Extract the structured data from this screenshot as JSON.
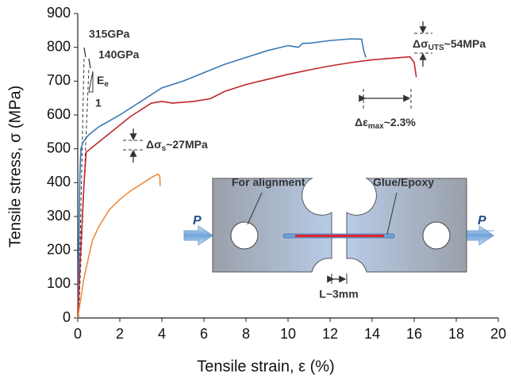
{
  "chart_data": {
    "type": "line",
    "x_label": "Tensile strain, ε (%)",
    "y_label": "Tensile stress, σ (MPa)",
    "xlim": [
      0,
      20
    ],
    "xticks": [
      0,
      2,
      4,
      6,
      8,
      10,
      12,
      14,
      16,
      18,
      20
    ],
    "ylim": [
      0,
      900
    ],
    "yticks": [
      0,
      100,
      200,
      300,
      400,
      500,
      600,
      700,
      800,
      900
    ],
    "series": [
      {
        "color": "#3a78b5",
        "x": [
          0,
          0.05,
          0.1,
          0.15,
          0.25,
          0.5,
          1,
          2,
          3,
          4,
          5,
          6,
          7,
          8,
          9,
          10,
          10.5,
          10.7,
          11,
          12,
          13,
          13.5,
          13.6,
          13.7
        ],
        "values": [
          0,
          200,
          420,
          500,
          520,
          540,
          565,
          600,
          640,
          680,
          700,
          725,
          750,
          770,
          790,
          805,
          800,
          812,
          812,
          820,
          825,
          824,
          790,
          770
        ]
      },
      {
        "color": "#c0272d",
        "x": [
          0,
          0.1,
          0.3,
          0.4,
          0.8,
          1.5,
          2.5,
          3.5,
          4,
          4.5,
          5.5,
          6.3,
          7,
          8,
          9,
          10,
          11,
          12,
          13,
          14,
          15,
          15.8,
          16,
          16.1
        ],
        "values": [
          0,
          150,
          400,
          490,
          510,
          545,
          595,
          635,
          640,
          635,
          640,
          648,
          670,
          690,
          705,
          720,
          733,
          745,
          755,
          763,
          768,
          772,
          755,
          712
        ]
      },
      {
        "color": "#f08a3a",
        "x": [
          0,
          0.3,
          0.7,
          1,
          1.5,
          2,
          2.5,
          3,
          3.5,
          3.8,
          3.9,
          3.92
        ],
        "values": [
          0,
          120,
          230,
          270,
          320,
          350,
          375,
          395,
          415,
          425,
          420,
          390
        ]
      }
    ],
    "annotations": {
      "modulus_1": "315GPa",
      "modulus_2": "140GPa",
      "slope_symbol": "E",
      "slope_sub": "e",
      "slope_run": "1",
      "uts": {
        "main": "Δσ",
        "sub": "UTS",
        "rest": "~54MPa"
      },
      "strain": {
        "main": "Δε",
        "sub": "max",
        "rest": "~2.3%"
      },
      "yield": {
        "main": "Δσ",
        "sub": "s",
        "rest": "~27MPa"
      }
    },
    "inset": {
      "alignment": "For alignment",
      "glue": "Glue/Epoxy",
      "load_left": "P",
      "load_right": "P",
      "gap": "L~3mm"
    }
  }
}
